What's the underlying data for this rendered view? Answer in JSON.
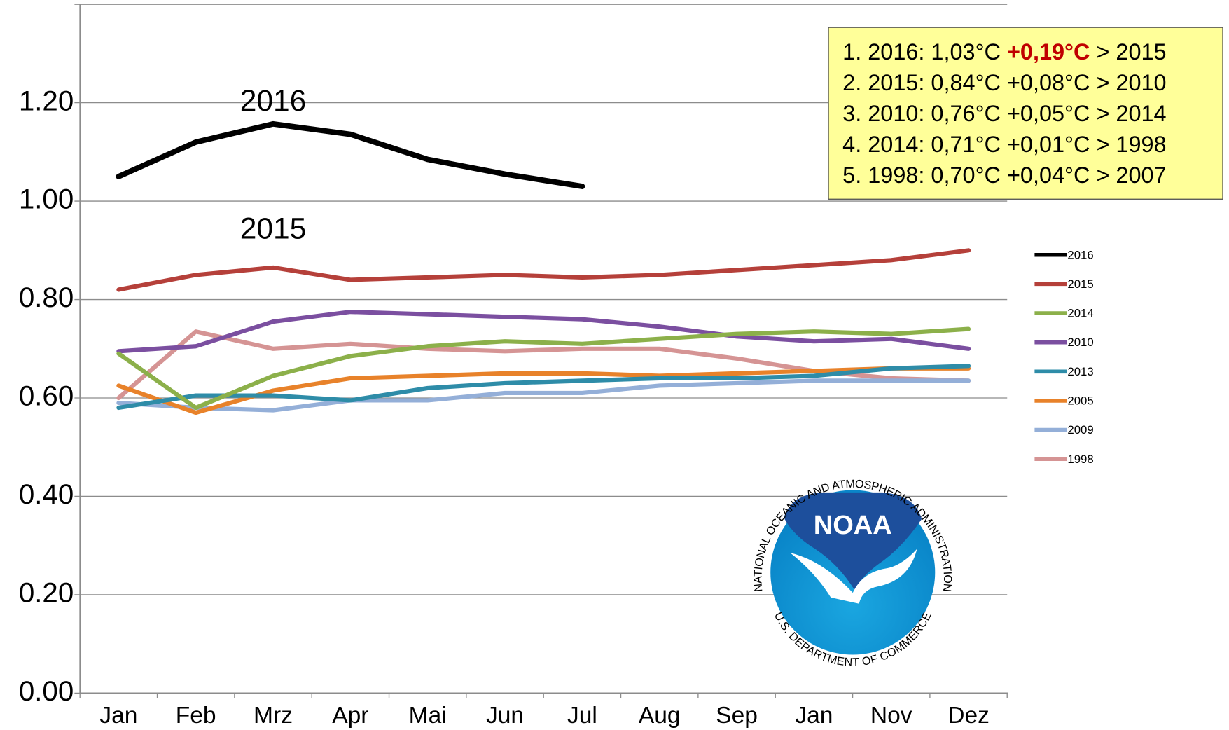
{
  "chart_data": {
    "type": "line",
    "categories": [
      "Jan",
      "Feb",
      "Mrz",
      "Apr",
      "Mai",
      "Jun",
      "Jul",
      "Aug",
      "Sep",
      "Jan",
      "Nov",
      "Dez"
    ],
    "series": [
      {
        "name": "2016",
        "color": "#000000",
        "values": [
          1.05,
          1.12,
          1.157,
          1.136,
          1.085,
          1.055,
          1.03,
          null,
          null,
          null,
          null,
          null
        ]
      },
      {
        "name": "2015",
        "color": "#b5403a",
        "values": [
          0.82,
          0.85,
          0.865,
          0.84,
          0.845,
          0.85,
          0.845,
          0.85,
          0.86,
          0.87,
          0.88,
          0.9
        ]
      },
      {
        "name": "2014",
        "color": "#8cb04a",
        "values": [
          0.69,
          0.58,
          0.645,
          0.685,
          0.705,
          0.715,
          0.71,
          0.72,
          0.73,
          0.735,
          0.73,
          0.74
        ]
      },
      {
        "name": "2010",
        "color": "#7b4fa0",
        "values": [
          0.695,
          0.705,
          0.755,
          0.775,
          0.77,
          0.765,
          0.76,
          0.745,
          0.725,
          0.715,
          0.72,
          0.7
        ]
      },
      {
        "name": "2013",
        "color": "#2e8ca8",
        "values": [
          0.58,
          0.605,
          0.605,
          0.595,
          0.62,
          0.63,
          0.635,
          0.64,
          0.64,
          0.645,
          0.66,
          0.665
        ]
      },
      {
        "name": "2005",
        "color": "#e8822a",
        "values": [
          0.625,
          0.57,
          0.615,
          0.64,
          0.645,
          0.65,
          0.65,
          0.645,
          0.65,
          0.655,
          0.66,
          0.66
        ]
      },
      {
        "name": "2009",
        "color": "#94afd8",
        "values": [
          0.59,
          0.58,
          0.575,
          0.595,
          0.595,
          0.61,
          0.61,
          0.625,
          0.63,
          0.635,
          0.635,
          0.635
        ]
      },
      {
        "name": "1998",
        "color": "#d59494",
        "values": [
          0.6,
          0.735,
          0.7,
          0.71,
          0.7,
          0.695,
          0.7,
          0.7,
          0.68,
          0.655,
          0.64,
          0.635
        ]
      }
    ],
    "ylim": [
      0,
      1.4
    ],
    "yticks": [
      {
        "value": 0,
        "label": "0.00"
      },
      {
        "value": 0.2,
        "label": "0.20"
      },
      {
        "value": 0.4,
        "label": "0.40"
      },
      {
        "value": 0.6,
        "label": "0.60"
      },
      {
        "value": 0.8,
        "label": "0.80"
      },
      {
        "value": 1,
        "label": "1.00"
      },
      {
        "value": 1.2,
        "label": "1.20"
      },
      {
        "value": 1.4,
        "label": ""
      }
    ],
    "grid": true,
    "legend": "right",
    "annotations": [
      {
        "text": "2016",
        "x": 2,
        "y": 1.2
      },
      {
        "text": "2015",
        "x": 2,
        "y": 0.94
      }
    ],
    "ranking": [
      {
        "prefix": "1. 2016: 1,03°C",
        "diff": "+0,19°C",
        "suffix": "> 2015",
        "diff_color": "#c00000"
      },
      {
        "prefix": "2. 2015: 0,84°C",
        "diff": "+0,08°C",
        "suffix": "> 2010"
      },
      {
        "prefix": "3. 2010: 0,76°C",
        "diff": "+0,05°C",
        "suffix": "> 2014"
      },
      {
        "prefix": "4. 2014: 0,71°C",
        "diff": "+0,01°C",
        "suffix": "> 1998"
      },
      {
        "prefix": "5. 1998: 0,70°C",
        "diff": "+0,04°C",
        "suffix": "> 2007"
      }
    ],
    "logo": {
      "name": "NOAA",
      "top_text": "NATIONAL OCEANIC AND ATMOSPHERIC ADMINISTRATION",
      "bottom_text": "U.S. DEPARTMENT OF COMMERCE"
    }
  }
}
